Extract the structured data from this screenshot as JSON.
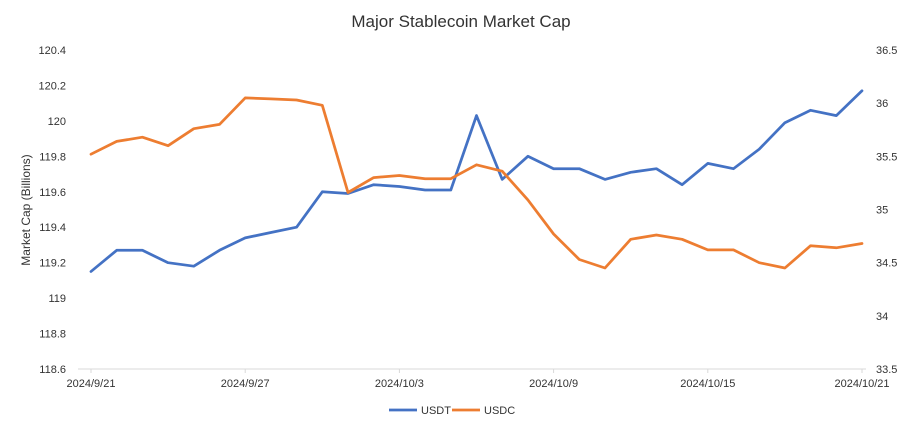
{
  "chart_data": {
    "type": "line",
    "title": "Major Stablecoin Market Cap",
    "ylabel": "Market Cap (Billions)",
    "y2label": "",
    "xlabel": "",
    "x": [
      "2024/9/21",
      "2024/9/22",
      "2024/9/23",
      "2024/9/24",
      "2024/9/25",
      "2024/9/26",
      "2024/9/27",
      "2024/9/28",
      "2024/9/29",
      "2024/9/30",
      "2024/10/1",
      "2024/10/2",
      "2024/10/3",
      "2024/10/4",
      "2024/10/5",
      "2024/10/6",
      "2024/10/7",
      "2024/10/8",
      "2024/10/9",
      "2024/10/10",
      "2024/10/11",
      "2024/10/12",
      "2024/10/13",
      "2024/10/14",
      "2024/10/15",
      "2024/10/16",
      "2024/10/17",
      "2024/10/18",
      "2024/10/19",
      "2024/10/20",
      "2024/10/21"
    ],
    "x_tick_labels": [
      "2024/9/21",
      "2024/9/27",
      "2024/10/3",
      "2024/10/9",
      "2024/10/15",
      "2024/10/21"
    ],
    "y_ticks": [
      "118.6",
      "118.8",
      "119",
      "119.2",
      "119.4",
      "119.6",
      "119.8",
      "120",
      "120.2",
      "120.4"
    ],
    "y2_ticks": [
      "33.5",
      "34",
      "34.5",
      "35",
      "35.5",
      "36",
      "36.5"
    ],
    "ylim": [
      118.6,
      120.4
    ],
    "y2lim": [
      33.5,
      36.5
    ],
    "grid": false,
    "legend_position": "bottom",
    "series": [
      {
        "name": "USDT",
        "axis": "left",
        "color": "#4472C4",
        "values": [
          119.15,
          119.27,
          119.27,
          119.2,
          119.18,
          119.27,
          119.34,
          119.37,
          119.4,
          119.6,
          119.59,
          119.64,
          119.63,
          119.61,
          119.61,
          120.03,
          119.67,
          119.8,
          119.73,
          119.73,
          119.67,
          119.71,
          119.73,
          119.64,
          119.76,
          119.73,
          119.84,
          119.99,
          120.06,
          120.03,
          120.17
        ]
      },
      {
        "name": "USDC",
        "axis": "right",
        "color": "#ED7D31",
        "values": [
          35.52,
          35.64,
          35.68,
          35.6,
          35.76,
          35.8,
          36.05,
          36.04,
          36.03,
          35.98,
          35.16,
          35.3,
          35.32,
          35.29,
          35.29,
          35.42,
          35.36,
          35.09,
          34.77,
          34.53,
          34.45,
          34.72,
          34.76,
          34.72,
          34.62,
          34.62,
          34.5,
          34.45,
          34.66,
          34.64,
          34.68
        ]
      }
    ]
  }
}
